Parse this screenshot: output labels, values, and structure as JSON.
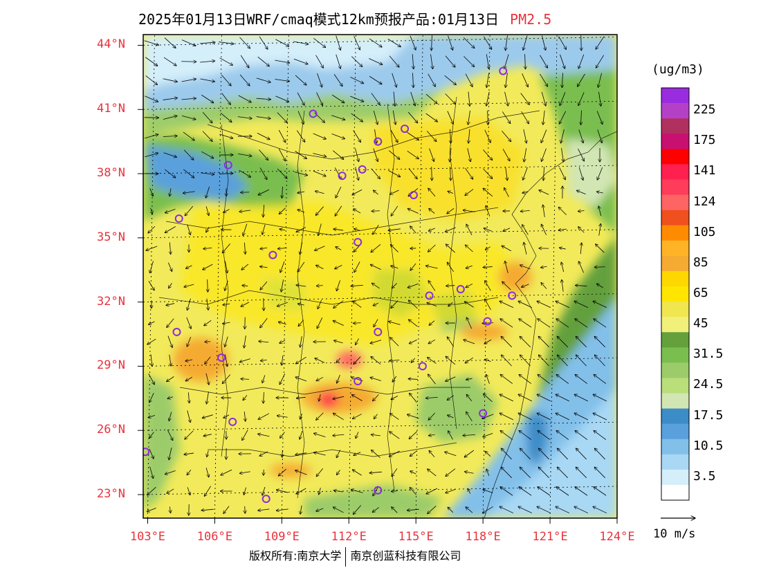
{
  "title": {
    "main": "2025年01月13日WRF/cmaq模式12km预报产品:01月13日",
    "pollutant": "PM2.5"
  },
  "map": {
    "lat_labels": [
      "44°N",
      "41°N",
      "38°N",
      "35°N",
      "32°N",
      "29°N",
      "26°N",
      "23°N"
    ],
    "lon_labels": [
      "103°E",
      "106°E",
      "109°E",
      "112°E",
      "115°E",
      "118°E",
      "121°E",
      "124°E"
    ],
    "lat_values": [
      44,
      41,
      38,
      35,
      32,
      29,
      26,
      23
    ],
    "lon_values": [
      103,
      106,
      109,
      112,
      115,
      118,
      121,
      124
    ],
    "extent": {
      "lon": [
        102.8,
        124.0
      ],
      "lat": [
        21.9,
        44.5
      ]
    },
    "background_color": "#f2ea5a",
    "ocean_color": "#9ccaec",
    "stations": [
      {
        "lon": 118.9,
        "lat": 42.8
      },
      {
        "lon": 110.4,
        "lat": 40.8
      },
      {
        "lon": 114.5,
        "lat": 40.1
      },
      {
        "lon": 113.3,
        "lat": 39.5
      },
      {
        "lon": 106.6,
        "lat": 38.4
      },
      {
        "lon": 111.7,
        "lat": 37.9
      },
      {
        "lon": 112.6,
        "lat": 38.2
      },
      {
        "lon": 114.9,
        "lat": 37.0
      },
      {
        "lon": 104.4,
        "lat": 35.9
      },
      {
        "lon": 112.4,
        "lat": 34.8
      },
      {
        "lon": 108.6,
        "lat": 34.2
      },
      {
        "lon": 117.0,
        "lat": 32.6
      },
      {
        "lon": 115.6,
        "lat": 32.3
      },
      {
        "lon": 119.3,
        "lat": 32.3
      },
      {
        "lon": 118.2,
        "lat": 31.1
      },
      {
        "lon": 104.3,
        "lat": 30.6
      },
      {
        "lon": 113.3,
        "lat": 30.6
      },
      {
        "lon": 106.3,
        "lat": 29.4
      },
      {
        "lon": 115.3,
        "lat": 29.0
      },
      {
        "lon": 112.4,
        "lat": 28.3
      },
      {
        "lon": 118.0,
        "lat": 26.8
      },
      {
        "lon": 106.8,
        "lat": 26.4
      },
      {
        "lon": 102.9,
        "lat": 25.0
      },
      {
        "lon": 108.3,
        "lat": 22.8
      },
      {
        "lon": 113.3,
        "lat": 23.2
      }
    ]
  },
  "legend": {
    "unit": "(ug/m3)",
    "colors": [
      "#9a2ce0",
      "#b540c8",
      "#b03060",
      "#c81070",
      "#ff0000",
      "#ff2050",
      "#ff3c5a",
      "#ff6464",
      "#f0501e",
      "#ff8c00",
      "#ffb428",
      "#f5aa32",
      "#ffd700",
      "#ffe600",
      "#f0e650",
      "#f0f07a",
      "#64a03c",
      "#7abe50",
      "#9ccc6a",
      "#bade7a",
      "#d2e6b4",
      "#3c8cc8",
      "#5aa0dc",
      "#82c0ea",
      "#a8d8f4",
      "#d4eefa",
      "#ffffff"
    ],
    "labels": [
      "225",
      "175",
      "141",
      "124",
      "105",
      "85",
      "65",
      "45",
      "31.5",
      "24.5",
      "17.5",
      "10.5",
      "3.5"
    ]
  },
  "wind_reference": {
    "label": "10 m/s"
  },
  "copyright": {
    "left": "版权所有:南京大学",
    "right": "南京创蓝科技有限公司"
  }
}
